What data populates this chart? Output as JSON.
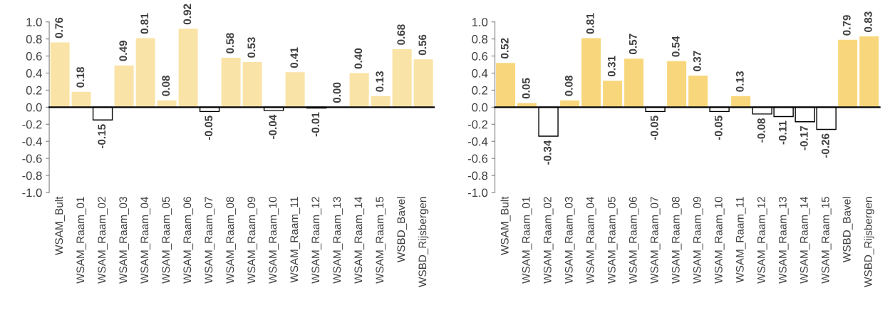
{
  "chart_data": [
    {
      "type": "bar",
      "categories": [
        "WSAM_Bult",
        "WSAM_Raam_01",
        "WSAM_Raam_02",
        "WSAM_Raam_03",
        "WSAM_Raam_04",
        "WSAM_Raam_05",
        "WSAM_Raam_06",
        "WSAM_Raam_07",
        "WSAM_Raam_08",
        "WSAM_Raam_09",
        "WSAM_Raam_10",
        "WSAM_Raam_11",
        "WSAM_Raam_12",
        "WSAM_Raam_13",
        "WSAM_Raam_14",
        "WSAM_Raam_15",
        "WSBD_Bavel",
        "WSBD_Rijsbergen"
      ],
      "values": [
        0.76,
        0.18,
        -0.15,
        0.49,
        0.81,
        0.08,
        0.92,
        -0.05,
        0.58,
        0.53,
        -0.04,
        0.41,
        -0.01,
        0.0,
        0.4,
        0.13,
        0.68,
        0.56
      ],
      "value_labels": [
        "0.76",
        "0.18",
        "-0.15",
        "0.49",
        "0.81",
        "0.08",
        "0.92",
        "-0.05",
        "0.58",
        "0.53",
        "-0.04",
        "0.41",
        "-0.01",
        "0.00",
        "0.40",
        "0.13",
        "0.68",
        "0.56"
      ],
      "colors": [
        "#fae3a6",
        "#fae3a6",
        "#ffffff",
        "#fae3a6",
        "#fae3a6",
        "#fae3a6",
        "#fae3a6",
        "#ffffff",
        "#fae3a6",
        "#fae3a6",
        "#ffffff",
        "#fae3a6",
        "#ffffff",
        "#fae3a6",
        "#fae3a6",
        "#fae3a6",
        "#fae3a6",
        "#fae3a6"
      ],
      "ylim": [
        -1.0,
        1.0
      ],
      "yticks": [
        {
          "value": -1.0,
          "label": "-1.0"
        },
        {
          "value": -0.8,
          "label": "-0.8"
        },
        {
          "value": -0.6,
          "label": "-0.6"
        },
        {
          "value": -0.4,
          "label": "-0.4"
        },
        {
          "value": -0.2,
          "label": "-0.2"
        },
        {
          "value": 0.0,
          "label": "0.0"
        },
        {
          "value": 0.2,
          "label": "0.2"
        },
        {
          "value": 0.4,
          "label": "0.4"
        },
        {
          "value": 0.6,
          "label": "0.6"
        },
        {
          "value": 0.8,
          "label": "0.8"
        },
        {
          "value": 1.0,
          "label": "1.0"
        }
      ]
    },
    {
      "type": "bar",
      "categories": [
        "WSAM_Bult",
        "WSAM_Raam_01",
        "WSAM_Raam_02",
        "WSAM_Raam_03",
        "WSAM_Raam_04",
        "WSAM_Raam_05",
        "WSAM_Raam_06",
        "WSAM_Raam_07",
        "WSAM_Raam_08",
        "WSAM_Raam_09",
        "WSAM_Raam_10",
        "WSAM_Raam_11",
        "WSAM_Raam_12",
        "WSAM_Raam_13",
        "WSAM_Raam_14",
        "WSAM_Raam_15",
        "WSBD_Bavel",
        "WSBD_Rijsbergen"
      ],
      "values": [
        0.52,
        0.05,
        -0.34,
        0.08,
        0.81,
        0.31,
        0.57,
        -0.05,
        0.54,
        0.37,
        -0.05,
        0.13,
        -0.08,
        -0.11,
        -0.17,
        -0.26,
        0.79,
        0.83
      ],
      "value_labels": [
        "0.52",
        "0.05",
        "-0.34",
        "0.08",
        "0.81",
        "0.31",
        "0.57",
        "-0.05",
        "0.54",
        "0.37",
        "-0.05",
        "0.13",
        "-0.08",
        "-0.11",
        "-0.17",
        "-0.26",
        "0.79",
        "0.83"
      ],
      "colors": [
        "#f8d77c",
        "#f8d77c",
        "#ffffff",
        "#f8d77c",
        "#f8d77c",
        "#f8d77c",
        "#f8d77c",
        "#ffffff",
        "#f8d77c",
        "#f8d77c",
        "#ffffff",
        "#f8d77c",
        "#ffffff",
        "#ffffff",
        "#ffffff",
        "#ffffff",
        "#f8d77c",
        "#f8d77c"
      ],
      "ylim": [
        -1.0,
        1.0
      ],
      "yticks": [
        {
          "value": -1.0,
          "label": "-1.0"
        },
        {
          "value": -0.8,
          "label": "-0.8"
        },
        {
          "value": -0.6,
          "label": "-0.6"
        },
        {
          "value": -0.4,
          "label": "-0.4"
        },
        {
          "value": -0.2,
          "label": "-0.2"
        },
        {
          "value": 0.0,
          "label": "0.0"
        },
        {
          "value": 0.2,
          "label": "0.2"
        },
        {
          "value": 0.4,
          "label": "0.4"
        },
        {
          "value": 0.6,
          "label": "0.6"
        },
        {
          "value": 0.8,
          "label": "0.8"
        },
        {
          "value": 1.0,
          "label": "1.0"
        }
      ]
    }
  ]
}
